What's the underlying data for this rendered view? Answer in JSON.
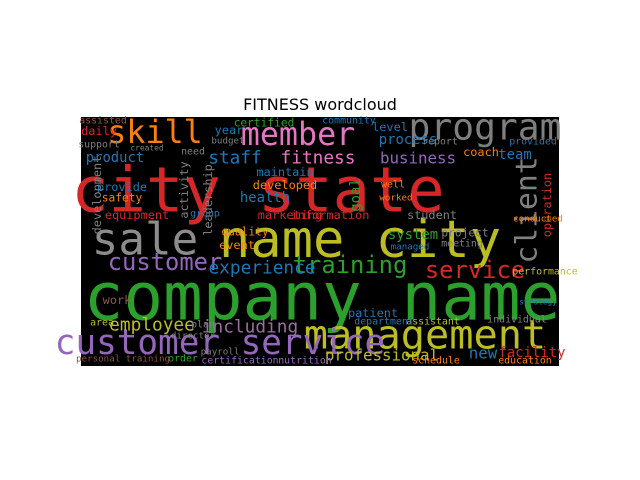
{
  "chart_data": {
    "type": "wordcloud",
    "title": "FITNESS wordcloud",
    "background": "#000000",
    "words": [
      {
        "text": "company name",
        "weight": 1,
        "color": "#2ca02c"
      },
      {
        "text": "city state",
        "weight": 0.94,
        "color": "#d62728"
      },
      {
        "text": "name city",
        "weight": 0.79,
        "color": "#bcbd22"
      },
      {
        "text": "sale",
        "weight": 0.67,
        "color": "#8c8c8c"
      },
      {
        "text": "management",
        "weight": 0.61,
        "color": "#bcbd22"
      },
      {
        "text": "program",
        "weight": 0.55,
        "color": "#7f7f7f"
      },
      {
        "text": "customer service",
        "weight": 0.52,
        "color": "#9467bd"
      },
      {
        "text": "member",
        "weight": 0.48,
        "color": "#e377c2"
      },
      {
        "text": "skill",
        "weight": 0.48,
        "color": "#ff7f0e"
      },
      {
        "text": "client",
        "weight": 0.45,
        "color": "#7f7f7f"
      },
      {
        "text": "customer",
        "weight": 0.36,
        "color": "#9467bd"
      },
      {
        "text": "training",
        "weight": 0.36,
        "color": "#2ca02c"
      },
      {
        "text": "service",
        "weight": 0.36,
        "color": "#d62728"
      },
      {
        "text": "experience",
        "weight": 0.27,
        "color": "#1f77b4"
      },
      {
        "text": "employee",
        "weight": 0.27,
        "color": "#bcbd22"
      },
      {
        "text": "including",
        "weight": 0.27,
        "color": "#9a6f9f"
      },
      {
        "text": "staff",
        "weight": 0.27,
        "color": "#1f77b4"
      },
      {
        "text": "fitness",
        "weight": 0.27,
        "color": "#e377c2"
      },
      {
        "text": "business",
        "weight": 0.24,
        "color": "#9467bd"
      },
      {
        "text": "professional",
        "weight": 0.24,
        "color": "#bcbd22"
      },
      {
        "text": "new",
        "weight": 0.24,
        "color": "#1f77b4"
      },
      {
        "text": "facility",
        "weight": 0.21,
        "color": "#d62728"
      },
      {
        "text": "product",
        "weight": 0.21,
        "color": "#1f77b4"
      },
      {
        "text": "team",
        "weight": 0.21,
        "color": "#1f77b4"
      },
      {
        "text": "process",
        "weight": 0.21,
        "color": "#1f77b4"
      },
      {
        "text": "goal",
        "weight": 0.21,
        "color": "#2ca02c"
      },
      {
        "text": "system",
        "weight": 0.21,
        "color": "#2ca02c"
      },
      {
        "text": "health",
        "weight": 0.21,
        "color": "#1f77b4"
      },
      {
        "text": "level",
        "weight": 0.18,
        "color": "#1f77b4"
      },
      {
        "text": "information",
        "weight": 0.18,
        "color": "#d62728"
      },
      {
        "text": "marketing",
        "weight": 0.18,
        "color": "#d62728"
      },
      {
        "text": "developed",
        "weight": 0.18,
        "color": "#ff7f0e"
      },
      {
        "text": "maintain",
        "weight": 0.18,
        "color": "#1f77b4"
      },
      {
        "text": "equipment",
        "weight": 0.18,
        "color": "#d62728"
      },
      {
        "text": "provide",
        "weight": 0.18,
        "color": "#1f77b4"
      },
      {
        "text": "safety",
        "weight": 0.17,
        "color": "#ff7f0e"
      },
      {
        "text": "event",
        "weight": 0.18,
        "color": "#ff7f0e"
      },
      {
        "text": "quality",
        "weight": 0.17,
        "color": "#ff7f0e"
      },
      {
        "text": "work",
        "weight": 0.18,
        "color": "#8c564b"
      },
      {
        "text": "patient",
        "weight": 0.18,
        "color": "#1f77b4"
      },
      {
        "text": "student",
        "weight": 0.18,
        "color": "#7f7f7f"
      },
      {
        "text": "coach",
        "weight": 0.18,
        "color": "#ff7f0e"
      },
      {
        "text": "project",
        "weight": 0.17,
        "color": "#7f7f7f"
      },
      {
        "text": "meeting",
        "weight": 0.15,
        "color": "#7f7f7f"
      },
      {
        "text": "year",
        "weight": 0.18,
        "color": "#1f77b4"
      },
      {
        "text": "daily",
        "weight": 0.18,
        "color": "#d62728"
      },
      {
        "text": "certified",
        "weight": 0.17,
        "color": "#2ca02c"
      },
      {
        "text": "community",
        "weight": 0.15,
        "color": "#1f77b4"
      },
      {
        "text": "report",
        "weight": 0.15,
        "color": "#7f7f7f"
      },
      {
        "text": "provided",
        "weight": 0.15,
        "color": "#1f77b4"
      },
      {
        "text": "activity",
        "weight": 0.18,
        "color": "#7f7f7f"
      },
      {
        "text": "leadership",
        "weight": 0.18,
        "color": "#7f7f7f"
      },
      {
        "text": "development",
        "weight": 0.18,
        "color": "#7f7f7f"
      },
      {
        "text": "operation",
        "weight": 0.18,
        "color": "#d62728"
      },
      {
        "text": "certification",
        "weight": 0.15,
        "color": "#9467bd"
      },
      {
        "text": "nutrition",
        "weight": 0.15,
        "color": "#9467bd"
      },
      {
        "text": "schedule",
        "weight": 0.15,
        "color": "#ff7f0e"
      },
      {
        "text": "education",
        "weight": 0.15,
        "color": "#ff7f0e"
      },
      {
        "text": "performance",
        "weight": 0.15,
        "color": "#bcbd22"
      },
      {
        "text": "order",
        "weight": 0.15,
        "color": "#2ca02c"
      },
      {
        "text": "personal training",
        "weight": 0.14,
        "color": "#8c564b"
      },
      {
        "text": "area",
        "weight": 0.15,
        "color": "#bcbd22"
      },
      {
        "text": "assistant",
        "weight": 0.15,
        "color": "#bcbd22"
      },
      {
        "text": "individual",
        "weight": 0.15,
        "color": "#7f7f7f"
      },
      {
        "text": "strategy",
        "weight": 0.12,
        "color": "#1f77b4"
      },
      {
        "text": "department",
        "weight": 0.15,
        "color": "#1f77b4"
      },
      {
        "text": "managed",
        "weight": 0.14,
        "color": "#1f77b4"
      },
      {
        "text": "conducted",
        "weight": 0.14,
        "color": "#ff7f0e"
      },
      {
        "text": "well",
        "weight": 0.15,
        "color": "#ff7f0e"
      },
      {
        "text": "worked",
        "weight": 0.14,
        "color": "#ff7f0e"
      },
      {
        "text": "group",
        "weight": 0.15,
        "color": "#1f77b4"
      },
      {
        "text": "assisted",
        "weight": 0.15,
        "color": "#8c564b"
      },
      {
        "text": "support",
        "weight": 0.15,
        "color": "#7f7f7f"
      },
      {
        "text": "created",
        "weight": 0.12,
        "color": "#7f7f7f"
      },
      {
        "text": "budget",
        "weight": 0.14,
        "color": "#7f7f7f"
      },
      {
        "text": "need",
        "weight": 0.15,
        "color": "#7f7f7f"
      },
      {
        "text": "director",
        "weight": 0.14,
        "color": "#7f7f7f"
      },
      {
        "text": "plan",
        "weight": 0.15,
        "color": "#7f7f7f"
      },
      {
        "text": "payroll",
        "weight": 0.14,
        "color": "#7f7f7f"
      }
    ]
  }
}
